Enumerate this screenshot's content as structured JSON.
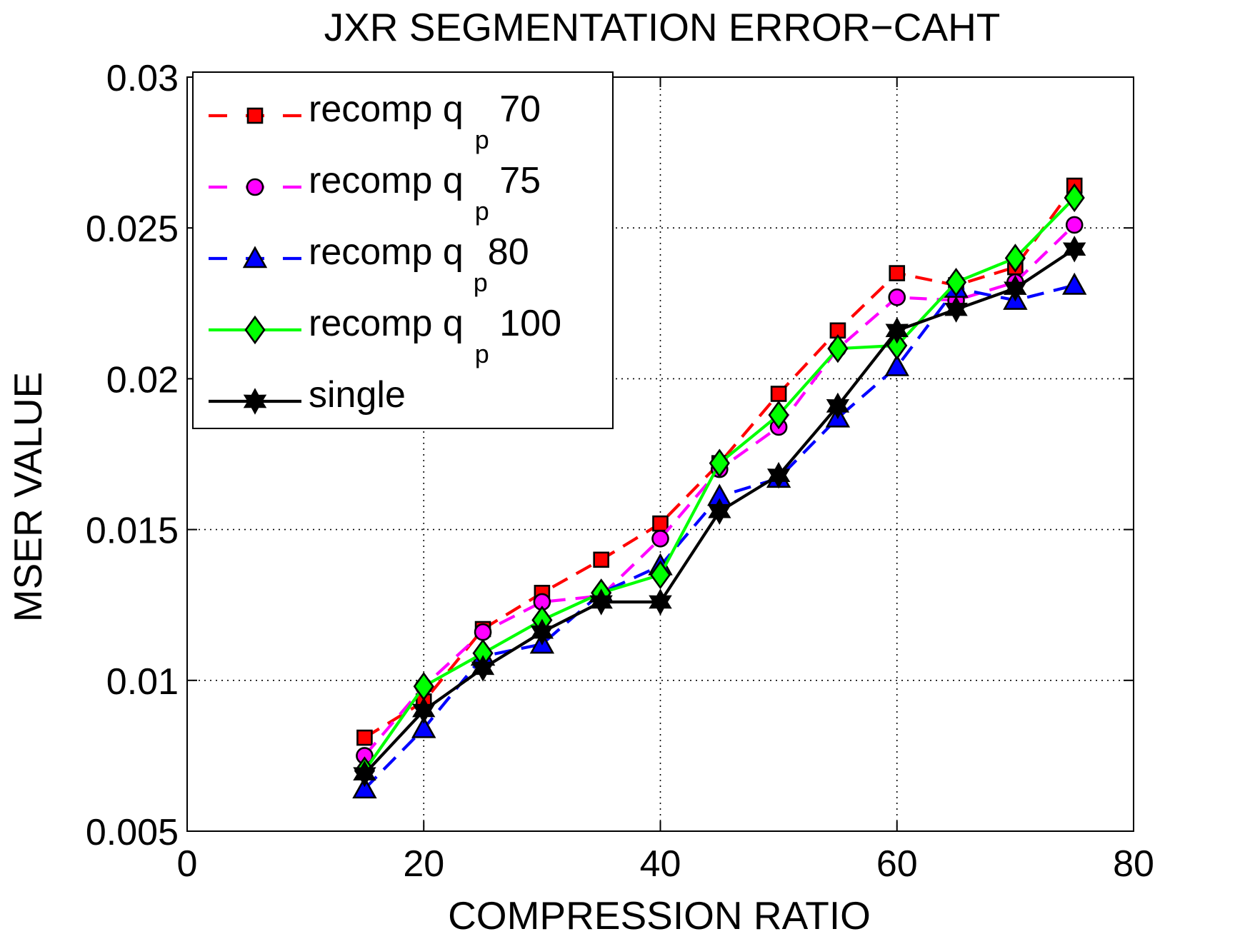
{
  "chart_data": {
    "type": "line",
    "title": "JXR SEGMENTATION ERROR−CAHT",
    "xlabel": "COMPRESSION RATIO",
    "ylabel": "MSER VALUE",
    "xlim": [
      0,
      80
    ],
    "ylim": [
      0.005,
      0.03
    ],
    "xticks": [
      0,
      20,
      40,
      60,
      80
    ],
    "xtick_labels": [
      "0",
      "20",
      "40",
      "60",
      "80"
    ],
    "yticks": [
      0.005,
      0.01,
      0.015,
      0.02,
      0.025,
      0.03
    ],
    "ytick_labels": [
      "0.005",
      "0.01",
      "0.015",
      "0.02",
      "0.025",
      "0.03"
    ],
    "grid": true,
    "legend_position": "top-left",
    "x": [
      15,
      20,
      25,
      30,
      35,
      40,
      45,
      50,
      55,
      60,
      65,
      70,
      75
    ],
    "series": [
      {
        "name": "recomp q_p 70",
        "legend_main": "recomp q",
        "legend_sub": "p",
        "legend_tail": " 70",
        "color": "#ff0000",
        "dash": "dashed",
        "marker": "square",
        "values": [
          0.0081,
          0.0093,
          0.0117,
          0.0129,
          0.014,
          0.0152,
          0.0172,
          0.0195,
          0.0216,
          0.0235,
          0.0231,
          0.0237,
          0.0264
        ]
      },
      {
        "name": "recomp q_p 75",
        "legend_main": "recomp q",
        "legend_sub": "p",
        "legend_tail": " 75",
        "color": "#ff00ff",
        "dash": "dashed",
        "marker": "circle",
        "values": [
          0.0075,
          0.0098,
          0.0116,
          0.0126,
          0.0128,
          0.0147,
          0.017,
          0.0184,
          0.021,
          0.0227,
          0.0226,
          0.0232,
          0.0251
        ]
      },
      {
        "name": "recomp q_p80",
        "legend_main": "recomp q",
        "legend_sub": "p",
        "legend_tail": "80",
        "color": "#0000ff",
        "dash": "dashed",
        "marker": "triangle",
        "values": [
          0.0064,
          0.0084,
          0.0108,
          0.0112,
          0.0129,
          0.0138,
          0.0161,
          0.0167,
          0.0187,
          0.0204,
          0.023,
          0.0226,
          0.0231
        ]
      },
      {
        "name": "recomp q_p 100",
        "legend_main": "recomp q",
        "legend_sub": "p",
        "legend_tail": " 100",
        "color": "#00ff00",
        "dash": "solid",
        "marker": "diamond",
        "values": [
          0.007,
          0.0098,
          0.0109,
          0.012,
          0.0129,
          0.0135,
          0.0172,
          0.0188,
          0.021,
          0.0211,
          0.0232,
          0.024,
          0.026
        ]
      },
      {
        "name": "single",
        "legend_main": "single",
        "legend_sub": "",
        "legend_tail": "",
        "color": "#000000",
        "dash": "solid",
        "marker": "hexagram",
        "values": [
          0.0069,
          0.009,
          0.0104,
          0.0116,
          0.0126,
          0.0126,
          0.0156,
          0.0168,
          0.0191,
          0.0216,
          0.0223,
          0.023,
          0.0243
        ]
      }
    ]
  }
}
